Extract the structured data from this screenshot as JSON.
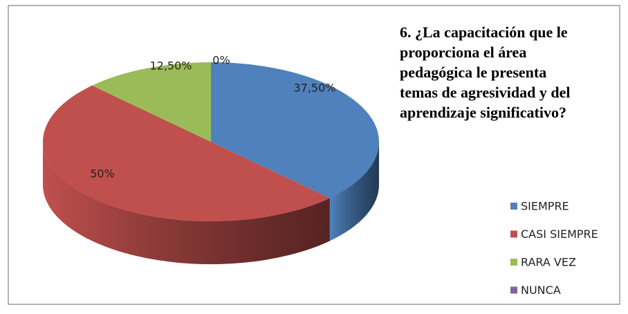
{
  "chart_data": {
    "type": "pie3d",
    "title": "6. ¿La capacitación que le proporciona el área pedagógica le presenta temas de agresividad y del aprendizaje significativo?",
    "categories": [
      "SIEMPRE",
      "CASI SIEMPRE",
      "RARA VEZ",
      "NUNCA"
    ],
    "values": [
      37.5,
      50,
      12.5,
      0
    ],
    "value_labels": [
      "37,50%",
      "50%",
      "12,50%",
      "0%"
    ],
    "colors": [
      "#4f81bd",
      "#c0504d",
      "#9bbb59",
      "#8064a2"
    ],
    "legend": "right"
  }
}
